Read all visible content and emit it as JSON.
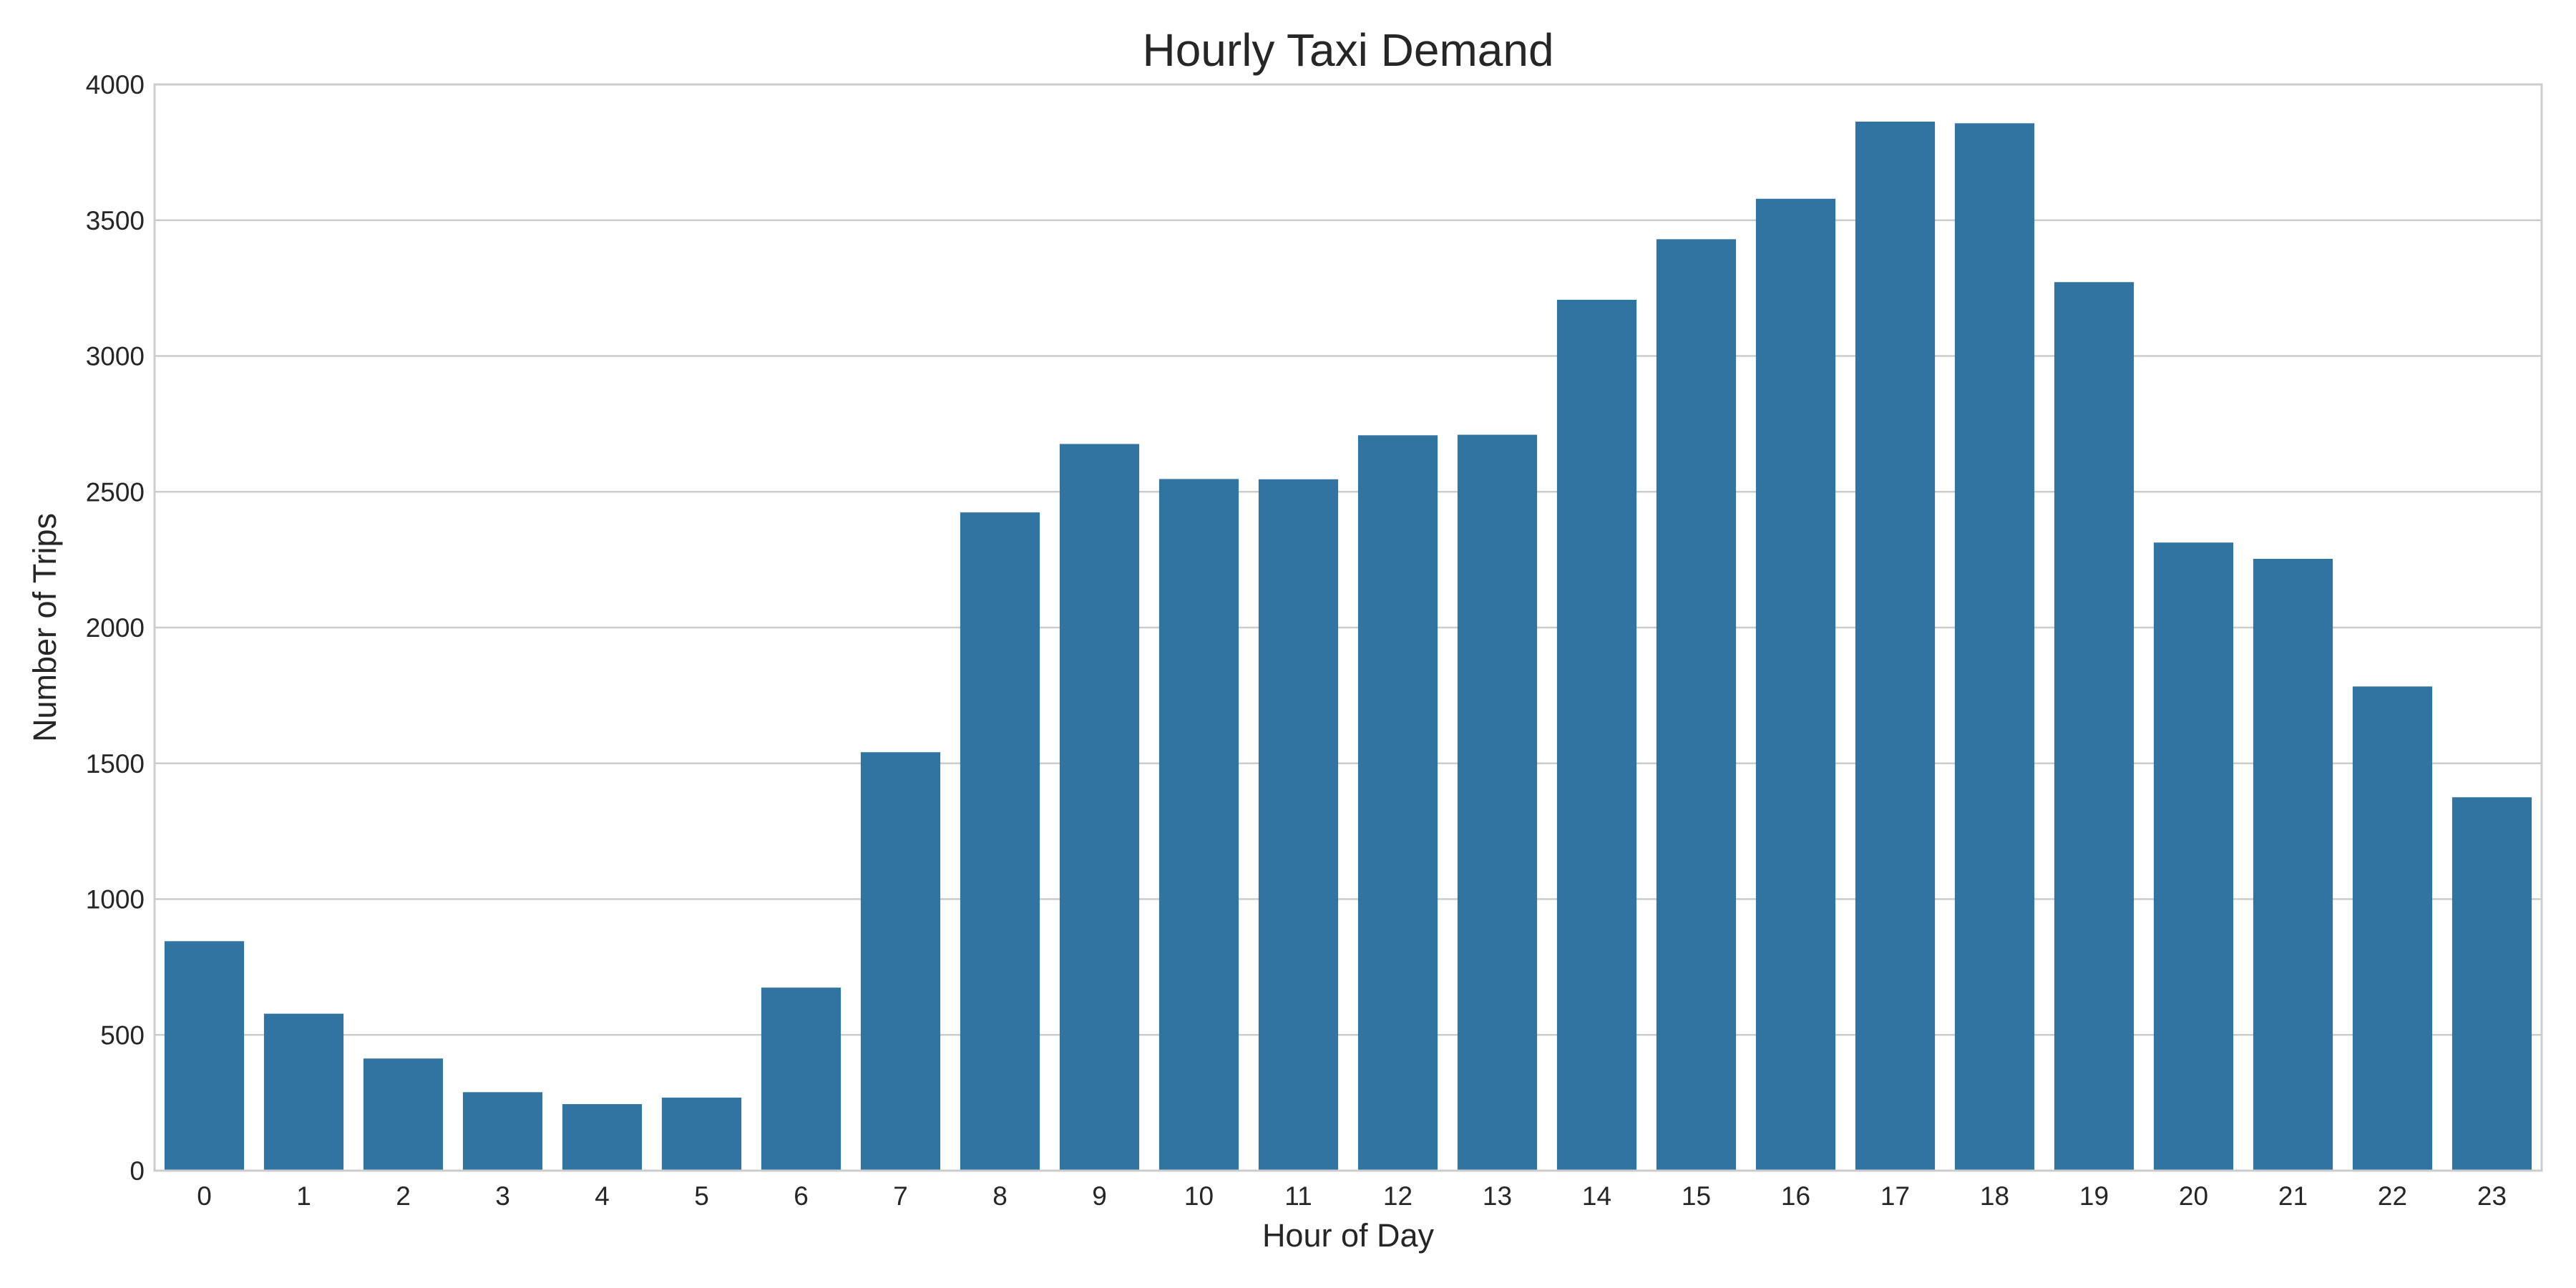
{
  "chart_data": {
    "type": "bar",
    "title": "Hourly Taxi Demand",
    "xlabel": "Hour of Day",
    "ylabel": "Number of Trips",
    "categories": [
      "0",
      "1",
      "2",
      "3",
      "4",
      "5",
      "6",
      "7",
      "8",
      "9",
      "10",
      "11",
      "12",
      "13",
      "14",
      "15",
      "16",
      "17",
      "18",
      "19",
      "20",
      "21",
      "22",
      "23"
    ],
    "values": [
      845,
      578,
      413,
      289,
      245,
      269,
      674,
      1541,
      2424,
      2676,
      2547,
      2546,
      2708,
      2710,
      3207,
      3430,
      3579,
      3863,
      3857,
      3272,
      2313,
      2253,
      1783,
      1375
    ],
    "ylim": [
      0,
      4000
    ],
    "yticks": [
      0,
      500,
      1000,
      1500,
      2000,
      2500,
      3000,
      3500,
      4000
    ],
    "grid": true,
    "legend": "none",
    "bar_color": "#3274a1",
    "grid_color": "#cccccc",
    "spine_color": "#cccccc",
    "text_color": "#262626"
  }
}
